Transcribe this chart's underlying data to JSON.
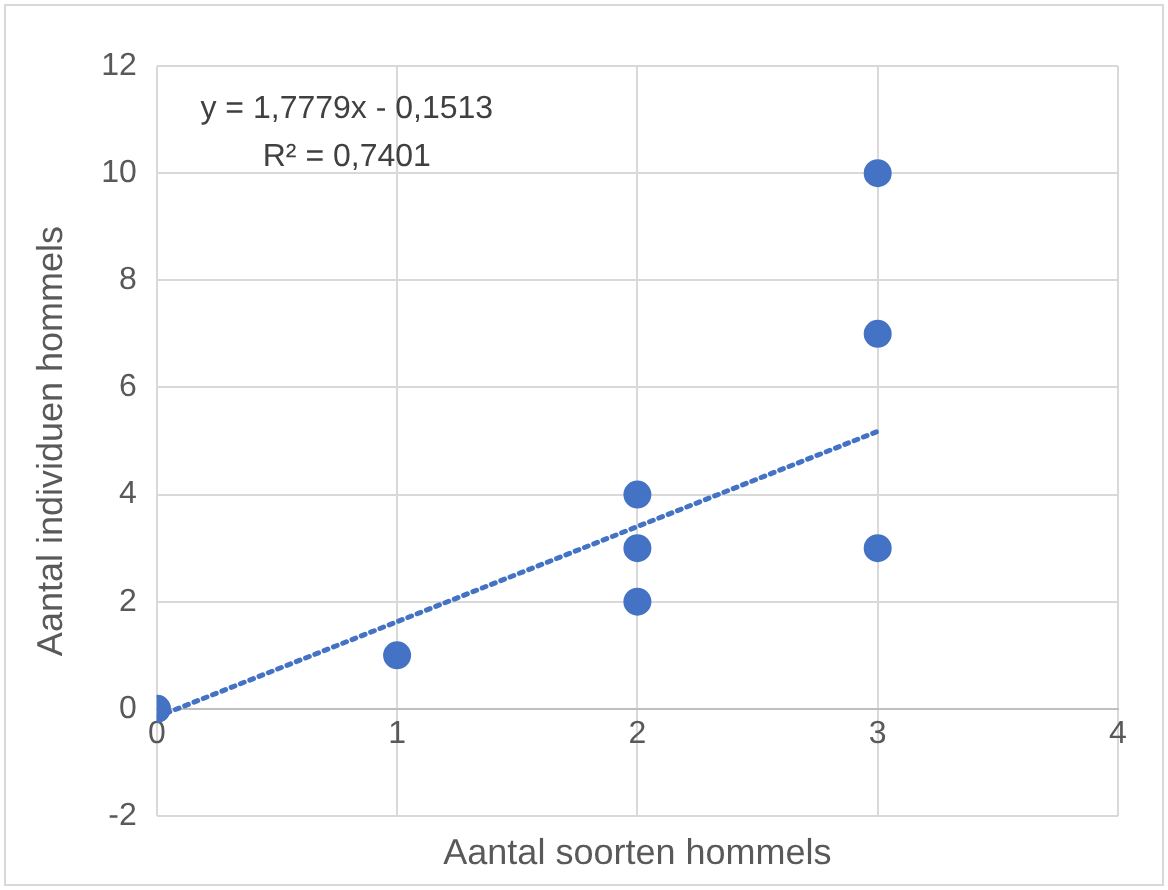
{
  "chart_data": {
    "type": "scatter",
    "xlabel": "Aantal soorten hommels",
    "ylabel": "Aantal individuen hommels",
    "series": [
      {
        "type": "scatter",
        "color": "#4472c4",
        "marker": "circle",
        "x": [
          0,
          0,
          1,
          2,
          2,
          2,
          3,
          3,
          3
        ],
        "values": [
          0,
          0,
          1,
          2,
          3,
          4,
          3,
          7,
          10
        ]
      },
      {
        "type": "line",
        "color": "#4472c4",
        "line_style": "dotted",
        "marker": "none",
        "x": [
          0,
          3
        ],
        "values": [
          -0.15,
          5.18
        ]
      }
    ],
    "annotations": [
      "y = 1,7779x - 0,1513",
      "R² = 0,7401"
    ],
    "xlim": [
      0,
      4
    ],
    "xticks": [
      0,
      1,
      2,
      3,
      4
    ],
    "ylim": [
      -2,
      12
    ],
    "yticks": [
      -2,
      0,
      2,
      4,
      6,
      8,
      10,
      12
    ],
    "grid": true,
    "legend": false
  }
}
